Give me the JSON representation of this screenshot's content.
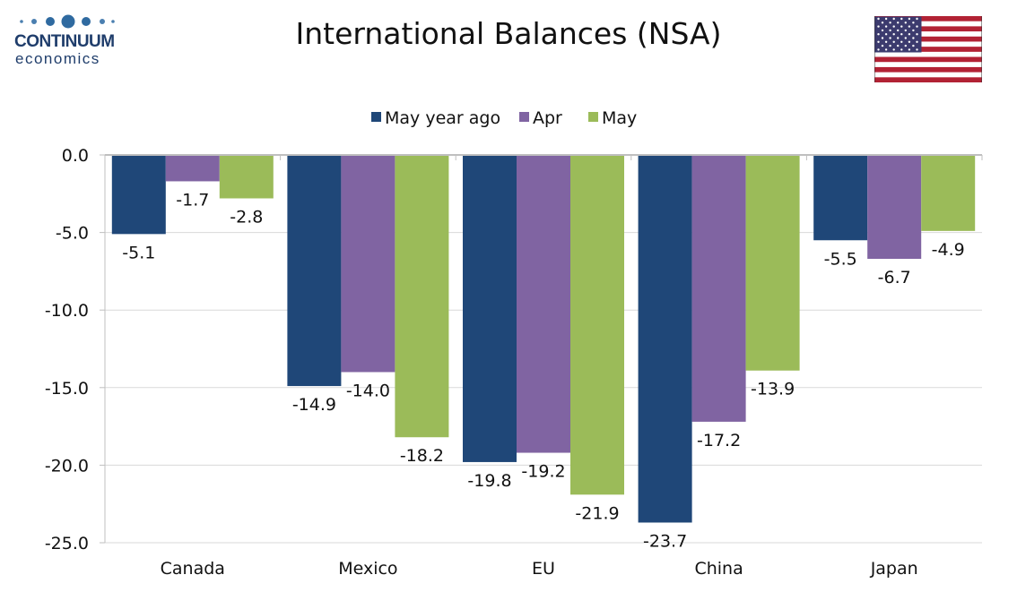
{
  "logo": {
    "name": "CONTINUUM",
    "sub": "economics"
  },
  "title": "International Balances (NSA)",
  "flag_icon": "us-flag-icon",
  "colors": {
    "May year ago": "#1f4778",
    "Apr": "#8064a2",
    "May": "#9bbb59",
    "grid": "#d9d9d9",
    "axis": "#bfbfbf"
  },
  "chart_data": {
    "type": "bar",
    "title": "International Balances (NSA)",
    "categories": [
      "Canada",
      "Mexico",
      "EU",
      "China",
      "Japan"
    ],
    "series": [
      {
        "name": "May year ago",
        "values": [
          -5.1,
          -14.9,
          -19.8,
          -23.7,
          -5.5
        ],
        "labels": [
          "-5.1",
          "-14.9",
          "-19.8",
          "-23.7",
          "-5.5"
        ]
      },
      {
        "name": "Apr",
        "values": [
          -1.7,
          -14.0,
          -19.2,
          -17.2,
          -6.7
        ],
        "labels": [
          "-1.7",
          "-14.0",
          "-19.2",
          "-17.2",
          "-6.7"
        ]
      },
      {
        "name": "May",
        "values": [
          -2.8,
          -18.2,
          -21.9,
          -13.9,
          -4.9
        ],
        "labels": [
          "-2.8",
          "-18.2",
          "-21.9",
          "-13.9",
          "-4.9"
        ]
      }
    ],
    "yticks": [
      0,
      -5,
      -10,
      -15,
      -20,
      -25
    ],
    "ytick_labels": [
      "0.0",
      "-5.0",
      "-10.0",
      "-15.0",
      "-20.0",
      "-25.0"
    ],
    "ylim": [
      -25,
      0
    ],
    "xlabel": "",
    "ylabel": "",
    "grid": true,
    "legend": "top-center"
  }
}
